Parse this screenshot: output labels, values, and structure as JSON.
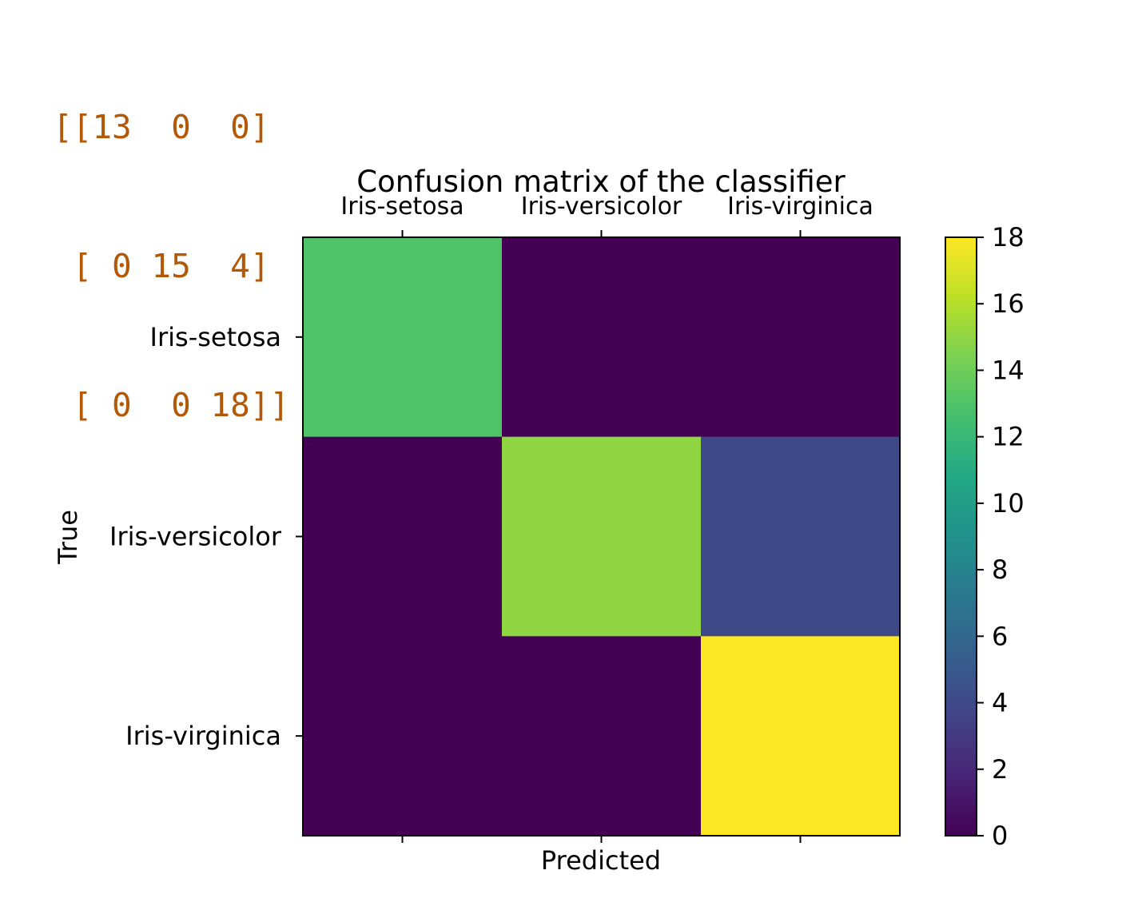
{
  "console_output": {
    "lines": [
      "[[13  0  0]",
      " [ 0 15  4]",
      " [ 0  0 18]]"
    ],
    "text_color": "#b35806"
  },
  "chart_data": {
    "type": "heatmap",
    "title": "Confusion matrix of the classifier",
    "xlabel": "Predicted",
    "ylabel": "True",
    "x_categories": [
      "Iris-setosa",
      "Iris-versicolor",
      "Iris-virginica"
    ],
    "y_categories": [
      "Iris-setosa",
      "Iris-versicolor",
      "Iris-virginica"
    ],
    "x_tick_position": "top",
    "values": [
      [
        13,
        0,
        0
      ],
      [
        0,
        15,
        4
      ],
      [
        0,
        0,
        18
      ]
    ],
    "colormap": "viridis",
    "colorbar": {
      "range": [
        0,
        18
      ],
      "ticks": [
        0,
        2,
        4,
        6,
        8,
        10,
        12,
        14,
        16,
        18
      ]
    },
    "grid": false
  }
}
